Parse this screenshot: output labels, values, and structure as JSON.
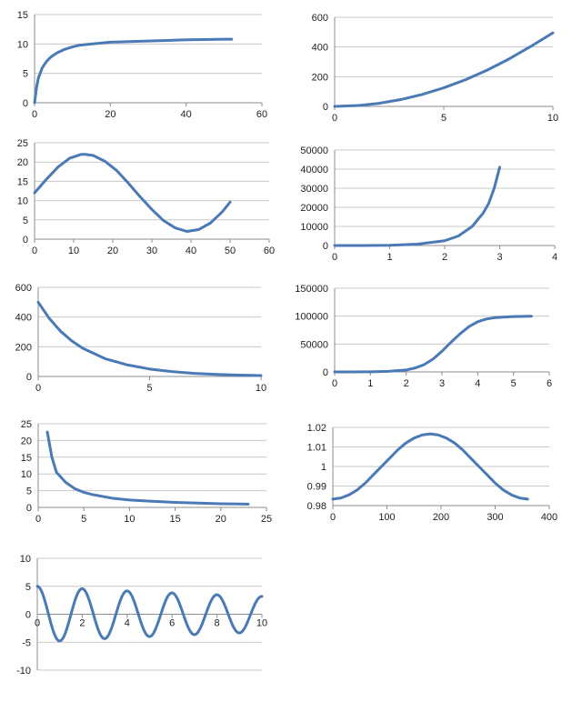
{
  "colors": {
    "series": "#4a7ab5",
    "grid": "#c8c8c8",
    "axis": "#8c8c8c"
  },
  "chart_data": [
    {
      "id": "c1",
      "type": "line",
      "grid": "horizontal",
      "xlim": [
        0,
        60
      ],
      "xticks": [
        0,
        20,
        40,
        60
      ],
      "ylim": [
        0,
        15
      ],
      "yticks": [
        0,
        5,
        10,
        15
      ],
      "series": [
        {
          "x": [
            0,
            0.5,
            1,
            2,
            3,
            4,
            5,
            6,
            8,
            10,
            12,
            15,
            20,
            25,
            30,
            35,
            40,
            45,
            50,
            52
          ],
          "y": [
            0,
            2.5,
            4.2,
            5.9,
            6.9,
            7.6,
            8.1,
            8.5,
            9.1,
            9.5,
            9.8,
            10.0,
            10.3,
            10.4,
            10.5,
            10.6,
            10.7,
            10.75,
            10.8,
            10.8
          ]
        }
      ]
    },
    {
      "id": "c2",
      "type": "line",
      "grid": "horizontal",
      "xlim": [
        0,
        10
      ],
      "xticks": [
        0,
        5,
        10
      ],
      "ylim": [
        0,
        600
      ],
      "yticks": [
        0,
        200,
        400,
        600
      ],
      "series": [
        {
          "x": [
            0,
            1,
            2,
            3,
            4,
            5,
            6,
            7,
            8,
            9,
            10
          ],
          "y": [
            0,
            5,
            20,
            45,
            80,
            125,
            180,
            245,
            320,
            405,
            495
          ]
        }
      ]
    },
    {
      "id": "c3",
      "type": "line",
      "grid": "horizontal",
      "xlim": [
        0,
        60
      ],
      "xticks": [
        0,
        10,
        20,
        30,
        40,
        50,
        60
      ],
      "ylim": [
        0,
        25
      ],
      "yticks": [
        0,
        5,
        10,
        15,
        20,
        25
      ],
      "series": [
        {
          "x": [
            0,
            3,
            6,
            9,
            12,
            13,
            15,
            18,
            21,
            24,
            27,
            30,
            33,
            36,
            39,
            42,
            45,
            48,
            50
          ],
          "y": [
            12,
            15.5,
            18.7,
            21,
            22,
            22,
            21.7,
            20.2,
            17.8,
            14.5,
            11,
            7.7,
            4.8,
            2.9,
            2,
            2.5,
            4.2,
            7.1,
            9.6
          ]
        }
      ]
    },
    {
      "id": "c4",
      "type": "line",
      "grid": "horizontal",
      "xlim": [
        0,
        4
      ],
      "xticks": [
        0,
        1,
        2,
        3,
        4
      ],
      "ylim": [
        0,
        50000
      ],
      "yticks": [
        0,
        10000,
        20000,
        30000,
        40000,
        50000
      ],
      "series": [
        {
          "x": [
            0,
            0.5,
            1,
            1.5,
            2,
            2.25,
            2.5,
            2.7,
            2.8,
            2.9,
            3
          ],
          "y": [
            0,
            20,
            150,
            700,
            2500,
            5000,
            10000,
            17000,
            22000,
            30000,
            41000
          ]
        }
      ]
    },
    {
      "id": "c5",
      "type": "line",
      "grid": "horizontal",
      "xlim": [
        0,
        10
      ],
      "xticks": [
        0,
        5,
        10
      ],
      "ylim": [
        0,
        600
      ],
      "yticks": [
        0,
        200,
        400,
        600
      ],
      "series": [
        {
          "x": [
            0,
            0.5,
            1,
            1.5,
            2,
            3,
            4,
            5,
            6,
            7,
            8,
            9,
            10
          ],
          "y": [
            500,
            390,
            305,
            240,
            190,
            120,
            78,
            50,
            33,
            21,
            14,
            9,
            6
          ]
        }
      ]
    },
    {
      "id": "c6",
      "type": "line",
      "grid": "horizontal",
      "xlim": [
        0,
        6
      ],
      "xticks": [
        0,
        1,
        2,
        3,
        4,
        5,
        6
      ],
      "ylim": [
        0,
        150000
      ],
      "yticks": [
        0,
        50000,
        100000,
        150000
      ],
      "series": [
        {
          "x": [
            0,
            1,
            1.5,
            2,
            2.25,
            2.5,
            2.75,
            3,
            3.25,
            3.5,
            3.75,
            4,
            4.25,
            4.5,
            5,
            5.5
          ],
          "y": [
            0,
            200,
            1000,
            3500,
            7000,
            13000,
            23000,
            37000,
            53000,
            68000,
            81000,
            90000,
            95000,
            97500,
            99200,
            99800
          ]
        }
      ]
    },
    {
      "id": "c7",
      "type": "line",
      "grid": "horizontal",
      "xlim": [
        0,
        25
      ],
      "xticks": [
        0,
        5,
        10,
        15,
        20,
        25
      ],
      "ylim": [
        0,
        25
      ],
      "yticks": [
        0,
        5,
        10,
        15,
        20,
        25
      ],
      "series": [
        {
          "x": [
            1,
            1.5,
            2,
            3,
            4,
            5,
            6,
            8,
            10,
            12,
            15,
            18,
            20,
            23
          ],
          "y": [
            22.5,
            15,
            10.5,
            7.5,
            5.6,
            4.5,
            3.8,
            2.8,
            2.2,
            1.9,
            1.5,
            1.25,
            1.1,
            1.0
          ]
        }
      ]
    },
    {
      "id": "c8",
      "type": "line",
      "grid": "horizontal",
      "xlim": [
        0,
        400
      ],
      "xticks": [
        0,
        100,
        200,
        300,
        400
      ],
      "ylim": [
        0.98,
        1.02
      ],
      "yticks": [
        0.98,
        0.99,
        1,
        1.01,
        1.02
      ],
      "series": [
        {
          "x": [
            0,
            15,
            30,
            45,
            60,
            75,
            90,
            105,
            120,
            135,
            150,
            165,
            180,
            195,
            210,
            225,
            240,
            255,
            270,
            285,
            300,
            315,
            330,
            345,
            360
          ],
          "y": [
            0.9833,
            0.9839,
            0.9855,
            0.988,
            0.9915,
            0.9958,
            1.0,
            1.0042,
            1.0085,
            1.012,
            1.0145,
            1.0161,
            1.0167,
            1.0161,
            1.0145,
            1.012,
            1.0085,
            1.0042,
            1.0,
            0.9958,
            0.9915,
            0.988,
            0.9855,
            0.9839,
            0.9833
          ]
        }
      ]
    },
    {
      "id": "c9",
      "type": "line",
      "grid": "horizontal",
      "xlim": [
        0,
        10
      ],
      "xticks": [
        0,
        2,
        4,
        6,
        8,
        10
      ],
      "ylim": [
        -10,
        10
      ],
      "yticks": [
        -10,
        -5,
        0,
        5,
        10
      ],
      "series": [
        {
          "func": "damped_cosine",
          "amplitude": 5,
          "decay": 0.045,
          "period": 2,
          "x_start": 0,
          "x_end": 10
        }
      ]
    }
  ]
}
